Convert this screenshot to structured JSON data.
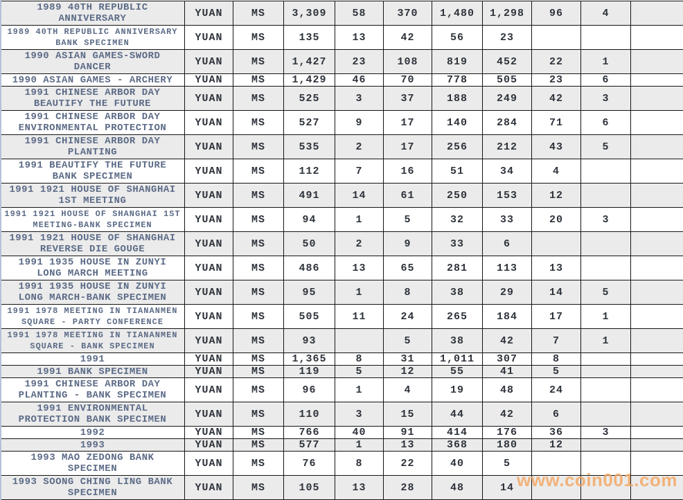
{
  "watermark": {
    "text": "www.coin001.com",
    "color": "#f3a865"
  },
  "colors": {
    "name_text": "#5c6b87",
    "value_text": "#2e333b",
    "row_shade": "#ebebeb",
    "row_plain": "#ffffff",
    "grid_border": "#141414",
    "left_edge": "#b5c2d8"
  },
  "table": {
    "column_names": [
      "coin-name",
      "currency",
      "grade-scale",
      "population-total",
      "grade-col-1",
      "grade-col-2",
      "grade-col-3",
      "grade-col-4",
      "grade-col-5",
      "grade-col-6",
      "grade-col-7"
    ],
    "rows": [
      {
        "name_lines": [
          "1989 40TH REPUBLIC",
          "ANNIVERSARY"
        ],
        "currency": "YUAN",
        "grade": "MS",
        "values": [
          "3,309",
          "58",
          "370",
          "1,480",
          "1,298",
          "96",
          "4",
          ""
        ]
      },
      {
        "name_lines": [
          "1989 40TH REPUBLIC ANNIVERSARY",
          "BANK SPECIMEN"
        ],
        "currency": "YUAN",
        "grade": "MS",
        "values": [
          "135",
          "13",
          "42",
          "56",
          "23",
          "",
          "",
          ""
        ]
      },
      {
        "name_lines": [
          "1990 ASIAN GAMES-SWORD",
          "DANCER"
        ],
        "currency": "YUAN",
        "grade": "MS",
        "values": [
          "1,427",
          "23",
          "108",
          "819",
          "452",
          "22",
          "1",
          ""
        ]
      },
      {
        "name_lines": [
          "1990 ASIAN GAMES - ARCHERY"
        ],
        "currency": "YUAN",
        "grade": "MS",
        "values": [
          "1,429",
          "46",
          "70",
          "778",
          "505",
          "23",
          "6",
          ""
        ]
      },
      {
        "name_lines": [
          "1991 CHINESE ARBOR DAY",
          "BEAUTIFY THE FUTURE"
        ],
        "currency": "YUAN",
        "grade": "MS",
        "values": [
          "525",
          "3",
          "37",
          "188",
          "249",
          "42",
          "3",
          ""
        ]
      },
      {
        "name_lines": [
          "1991 CHINESE ARBOR DAY",
          "ENVIRONMENTAL PROTECTION"
        ],
        "currency": "YUAN",
        "grade": "MS",
        "values": [
          "527",
          "9",
          "17",
          "140",
          "284",
          "71",
          "6",
          ""
        ]
      },
      {
        "name_lines": [
          "1991 CHINESE ARBOR DAY",
          "PLANTING"
        ],
        "currency": "YUAN",
        "grade": "MS",
        "values": [
          "535",
          "2",
          "17",
          "256",
          "212",
          "43",
          "5",
          ""
        ]
      },
      {
        "name_lines": [
          "1991 BEAUTIFY THE FUTURE",
          "BANK SPECIMEN"
        ],
        "currency": "YUAN",
        "grade": "MS",
        "values": [
          "112",
          "7",
          "16",
          "51",
          "34",
          "4",
          "",
          ""
        ]
      },
      {
        "name_lines": [
          "1991 1921 HOUSE OF SHANGHAI",
          "1ST MEETING"
        ],
        "currency": "YUAN",
        "grade": "MS",
        "values": [
          "491",
          "14",
          "61",
          "250",
          "153",
          "12",
          "",
          ""
        ]
      },
      {
        "name_lines": [
          "1991 1921 HOUSE OF SHANGHAI 1ST",
          "MEETING-BANK SPECIMEN"
        ],
        "currency": "YUAN",
        "grade": "MS",
        "values": [
          "94",
          "1",
          "5",
          "32",
          "33",
          "20",
          "3",
          ""
        ]
      },
      {
        "name_lines": [
          "1991 1921 HOUSE OF SHANGHAI",
          "REVERSE DIE GOUGE"
        ],
        "currency": "YUAN",
        "grade": "MS",
        "values": [
          "50",
          "2",
          "9",
          "33",
          "6",
          "",
          "",
          ""
        ]
      },
      {
        "name_lines": [
          "1991 1935 HOUSE IN ZUNYI",
          "LONG MARCH MEETING"
        ],
        "currency": "YUAN",
        "grade": "MS",
        "values": [
          "486",
          "13",
          "65",
          "281",
          "113",
          "13",
          "",
          ""
        ]
      },
      {
        "name_lines": [
          "1991 1935 HOUSE IN ZUNYI",
          "LONG MARCH-BANK SPECIMEN"
        ],
        "currency": "YUAN",
        "grade": "MS",
        "values": [
          "95",
          "1",
          "8",
          "38",
          "29",
          "14",
          "5",
          ""
        ]
      },
      {
        "name_lines": [
          "1991 1978 MEETING IN TIANANMEN",
          "SQUARE - PARTY CONFERENCE"
        ],
        "currency": "YUAN",
        "grade": "MS",
        "values": [
          "505",
          "11",
          "24",
          "265",
          "184",
          "17",
          "1",
          ""
        ]
      },
      {
        "name_lines": [
          "1991 1978 MEETING IN TIANANMEN",
          "SQUARE - BANK SPECIMEN"
        ],
        "currency": "YUAN",
        "grade": "MS",
        "values": [
          "93",
          "",
          "5",
          "38",
          "42",
          "7",
          "1",
          ""
        ]
      },
      {
        "name_lines": [
          "1991"
        ],
        "currency": "YUAN",
        "grade": "MS",
        "values": [
          "1,365",
          "8",
          "31",
          "1,011",
          "307",
          "8",
          "",
          ""
        ]
      },
      {
        "name_lines": [
          "1991 BANK SPECIMEN"
        ],
        "currency": "YUAN",
        "grade": "MS",
        "values": [
          "119",
          "5",
          "12",
          "55",
          "41",
          "5",
          "",
          ""
        ]
      },
      {
        "name_lines": [
          "1991 CHINESE ARBOR DAY",
          "PLANTING - BANK SPECIMEN"
        ],
        "currency": "YUAN",
        "grade": "MS",
        "values": [
          "96",
          "1",
          "4",
          "19",
          "48",
          "24",
          "",
          ""
        ]
      },
      {
        "name_lines": [
          "1991 ENVIRONMENTAL",
          "PROTECTION BANK SPECIMEN"
        ],
        "currency": "YUAN",
        "grade": "MS",
        "values": [
          "110",
          "3",
          "15",
          "44",
          "42",
          "6",
          "",
          ""
        ]
      },
      {
        "name_lines": [
          "1992"
        ],
        "currency": "YUAN",
        "grade": "MS",
        "values": [
          "766",
          "40",
          "91",
          "414",
          "176",
          "36",
          "3",
          ""
        ]
      },
      {
        "name_lines": [
          "1993"
        ],
        "currency": "YUAN",
        "grade": "MS",
        "values": [
          "577",
          "1",
          "13",
          "368",
          "180",
          "12",
          "",
          ""
        ]
      },
      {
        "name_lines": [
          "1993 MAO ZEDONG BANK",
          "SPECIMEN"
        ],
        "currency": "YUAN",
        "grade": "MS",
        "values": [
          "76",
          "8",
          "22",
          "40",
          "5",
          "",
          "",
          ""
        ]
      },
      {
        "name_lines": [
          "1993 SOONG CHING LING BANK",
          "SPECIMEN"
        ],
        "currency": "YUAN",
        "grade": "MS",
        "values": [
          "105",
          "13",
          "28",
          "48",
          "14",
          "",
          "",
          ""
        ]
      }
    ]
  }
}
